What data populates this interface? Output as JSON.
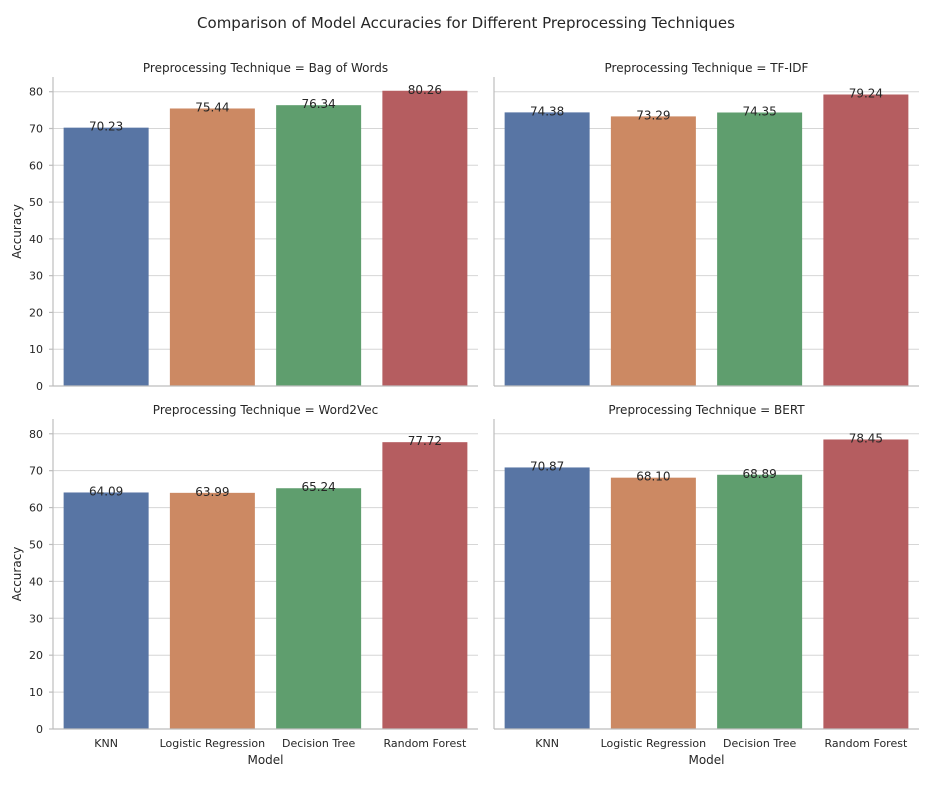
{
  "chart_data": {
    "type": "bar",
    "title": "Comparison of Model Accuracies for Different Preprocessing Techniques",
    "xlabel": "Model",
    "ylabel": "Accuracy",
    "ylim": [
      0,
      84
    ],
    "yticks": [
      0,
      10,
      20,
      30,
      40,
      50,
      60,
      70,
      80
    ],
    "grid": true,
    "categories": [
      "KNN",
      "Logistic Regression",
      "Decision Tree",
      "Random Forest"
    ],
    "colors": [
      "#5875a4",
      "#cc8963",
      "#5f9e6e",
      "#b55d60"
    ],
    "panels": [
      {
        "title": "Preprocessing Technique = Bag of Words",
        "values": [
          70.23,
          75.44,
          76.34,
          80.26
        ],
        "labels": [
          "70.23",
          "75.44",
          "76.34",
          "80.26"
        ]
      },
      {
        "title": "Preprocessing Technique = TF-IDF",
        "values": [
          74.38,
          73.29,
          74.35,
          79.24
        ],
        "labels": [
          "74.38",
          "73.29",
          "74.35",
          "79.24"
        ]
      },
      {
        "title": "Preprocessing Technique = Word2Vec",
        "values": [
          64.09,
          63.99,
          65.24,
          77.72
        ],
        "labels": [
          "64.09",
          "63.99",
          "65.24",
          "77.72"
        ]
      },
      {
        "title": "Preprocessing Technique = BERT",
        "values": [
          70.87,
          68.1,
          68.89,
          78.45
        ],
        "labels": [
          "70.87",
          "68.10",
          "68.89",
          "78.45"
        ]
      }
    ]
  }
}
